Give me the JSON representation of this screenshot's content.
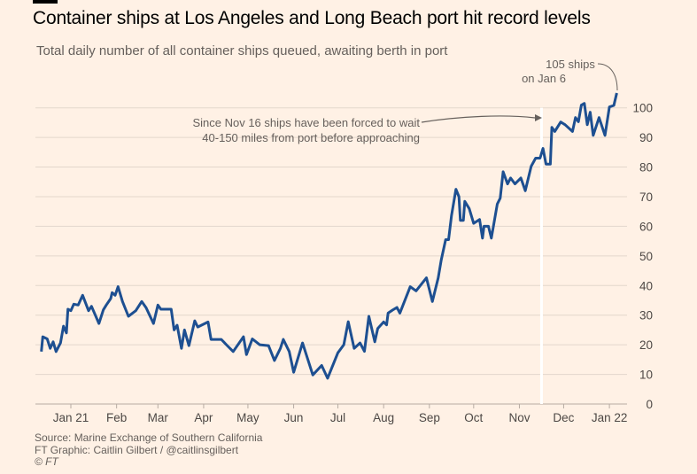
{
  "header": {
    "title": "Container ships at Los Angeles and Long Beach port hit record levels",
    "subtitle": "Total daily number of all container ships queued, awaiting berth in port"
  },
  "footer": {
    "source": "Source: Marine Exchange of Southern California",
    "credit": "FT Graphic: Caitlin Gilbert / @caitlinsgilbert",
    "copyright": "© FT"
  },
  "colors": {
    "background": "#fff1e5",
    "line": "#1d4f91",
    "highlight": "#ffffff",
    "grid": "#e3d7cc"
  },
  "chart_data": {
    "type": "line",
    "title": "Container ships at Los Angeles and Long Beach port hit record levels",
    "subtitle": "Total daily number of all container ships queued, awaiting berth in port",
    "xlabel": "",
    "ylabel": "",
    "x_unit": "days since 2021-01-01",
    "ylim": [
      0,
      105
    ],
    "grid": true,
    "y_axis_side": "right",
    "yticks": [
      0,
      10,
      20,
      30,
      40,
      50,
      60,
      70,
      80,
      90,
      100
    ],
    "xticks": [
      {
        "day": 0,
        "label": "Jan 21"
      },
      {
        "day": 31,
        "label": "Feb"
      },
      {
        "day": 59,
        "label": "Mar"
      },
      {
        "day": 90,
        "label": "Apr"
      },
      {
        "day": 120,
        "label": "May"
      },
      {
        "day": 151,
        "label": "Jun"
      },
      {
        "day": 181,
        "label": "Jul"
      },
      {
        "day": 212,
        "label": "Aug"
      },
      {
        "day": 243,
        "label": "Sep"
      },
      {
        "day": 273,
        "label": "Oct"
      },
      {
        "day": 304,
        "label": "Nov"
      },
      {
        "day": 334,
        "label": "Dec"
      },
      {
        "day": 365,
        "label": "Jan 22"
      }
    ],
    "series": [
      {
        "name": "Container ships queued",
        "points": [
          [
            -20,
            17.7
          ],
          [
            -19,
            22.7
          ],
          [
            -16,
            22
          ],
          [
            -14,
            18.8
          ],
          [
            -12,
            21
          ],
          [
            -10,
            17.7
          ],
          [
            -7,
            20.6
          ],
          [
            -5,
            26.3
          ],
          [
            -3,
            24
          ],
          [
            -2,
            32
          ],
          [
            0,
            31.5
          ],
          [
            2,
            33.7
          ],
          [
            5,
            33.4
          ],
          [
            8,
            36.7
          ],
          [
            12,
            31.5
          ],
          [
            14,
            33
          ],
          [
            19,
            27.2
          ],
          [
            22,
            31.8
          ],
          [
            24,
            33.4
          ],
          [
            27,
            35.6
          ],
          [
            28,
            37.6
          ],
          [
            30,
            36.7
          ],
          [
            32,
            39.6
          ],
          [
            35,
            34.6
          ],
          [
            39,
            29.6
          ],
          [
            44,
            31.5
          ],
          [
            48,
            34.6
          ],
          [
            51,
            32.5
          ],
          [
            56,
            27.2
          ],
          [
            59,
            33.4
          ],
          [
            61,
            32
          ],
          [
            68,
            32
          ],
          [
            70,
            25
          ],
          [
            72,
            26.6
          ],
          [
            75,
            18.8
          ],
          [
            77,
            25
          ],
          [
            80,
            19.7
          ],
          [
            84,
            28.1
          ],
          [
            86,
            26
          ],
          [
            93,
            27.7
          ],
          [
            95,
            21.8
          ],
          [
            102,
            21.8
          ],
          [
            106,
            19.7
          ],
          [
            110,
            17.7
          ],
          [
            117,
            22.7
          ],
          [
            119,
            16.7
          ],
          [
            123,
            22
          ],
          [
            128,
            20
          ],
          [
            134,
            19.7
          ],
          [
            138,
            14.7
          ],
          [
            142,
            18.8
          ],
          [
            144,
            21.8
          ],
          [
            148,
            17.7
          ],
          [
            151,
            10.7
          ],
          [
            157,
            20.6
          ],
          [
            164,
            9.8
          ],
          [
            170,
            13
          ],
          [
            174,
            8.7
          ],
          [
            181,
            17.3
          ],
          [
            185,
            20
          ],
          [
            188,
            27.8
          ],
          [
            192,
            18.8
          ],
          [
            196,
            20.6
          ],
          [
            199,
            17.8
          ],
          [
            202,
            29.6
          ],
          [
            206,
            21
          ],
          [
            208,
            25.5
          ],
          [
            212,
            27.7
          ],
          [
            214,
            26.7
          ],
          [
            215,
            30.7
          ],
          [
            218,
            31.7
          ],
          [
            221,
            32.6
          ],
          [
            223,
            30.7
          ],
          [
            230,
            39.6
          ],
          [
            234,
            38.2
          ],
          [
            241,
            42.6
          ],
          [
            245,
            34.6
          ],
          [
            249,
            42.6
          ],
          [
            251,
            48.6
          ],
          [
            254,
            55.5
          ],
          [
            256,
            55.5
          ],
          [
            258,
            63.6
          ],
          [
            261,
            72.5
          ],
          [
            263,
            70
          ],
          [
            264,
            62
          ],
          [
            266,
            62
          ],
          [
            267,
            68.4
          ],
          [
            270,
            66
          ],
          [
            273,
            61
          ],
          [
            277,
            62.3
          ],
          [
            279,
            56
          ],
          [
            280,
            60
          ],
          [
            283,
            60
          ],
          [
            285,
            56
          ],
          [
            289,
            67.5
          ],
          [
            291,
            69.5
          ],
          [
            293,
            78.4
          ],
          [
            296,
            74.3
          ],
          [
            298,
            76.3
          ],
          [
            301,
            74.3
          ],
          [
            305,
            76.3
          ],
          [
            308,
            72
          ],
          [
            312,
            80.3
          ],
          [
            315,
            83
          ],
          [
            318,
            83
          ],
          [
            320,
            86.3
          ],
          [
            322,
            81
          ],
          [
            325,
            81
          ],
          [
            326,
            93.4
          ],
          [
            328,
            92
          ],
          [
            332,
            95.2
          ],
          [
            335,
            94.3
          ],
          [
            340,
            92
          ],
          [
            342,
            96.7
          ],
          [
            344,
            95.3
          ],
          [
            346,
            100.9
          ],
          [
            348,
            101.5
          ],
          [
            350,
            94.3
          ],
          [
            352,
            98.5
          ],
          [
            354,
            90.7
          ],
          [
            358,
            96.7
          ],
          [
            362,
            90.7
          ],
          [
            365,
            100.3
          ],
          [
            368,
            100.8
          ],
          [
            370,
            105
          ]
        ]
      }
    ],
    "highlight_day": 319,
    "annotations": [
      {
        "target_day": 370,
        "target_value": 105,
        "lines": [
          "105 ships",
          "on Jan 6"
        ]
      },
      {
        "target_day": 319,
        "target_value": 100,
        "lines": [
          "Since Nov 16 ships have been forced to wait",
          "40-150 miles from port before approaching"
        ]
      }
    ]
  }
}
